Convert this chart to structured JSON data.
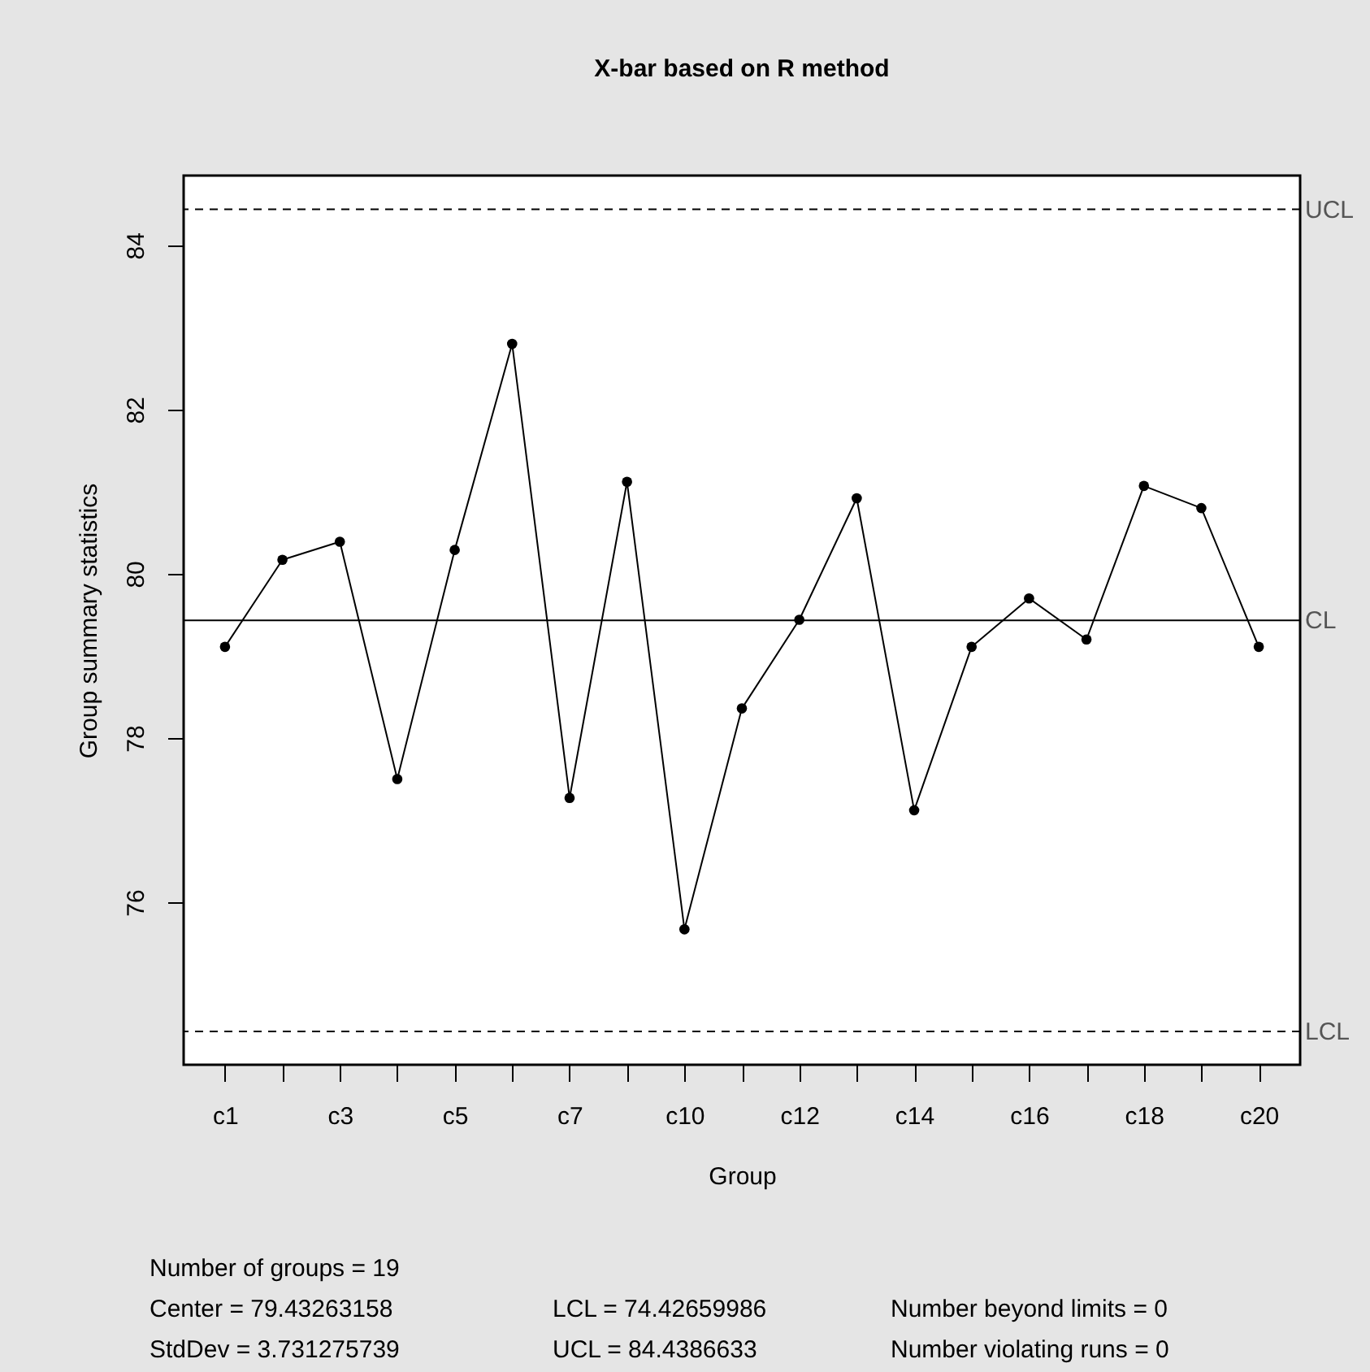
{
  "chart_data": {
    "type": "line",
    "title": "X-bar based on R method",
    "xlabel": "Group",
    "ylabel": "Group summary statistics",
    "categories": [
      "c1",
      null,
      "c3",
      null,
      "c5",
      null,
      "c7",
      null,
      "c10",
      null,
      "c12",
      null,
      "c14",
      null,
      "c16",
      null,
      "c18",
      null,
      "c20"
    ],
    "series": [
      {
        "color": "#000000",
        "values": [
          79.11,
          80.17,
          80.39,
          77.5,
          80.29,
          82.8,
          77.27,
          81.12,
          75.67,
          78.36,
          79.44,
          80.92,
          77.12,
          79.11,
          79.7,
          79.2,
          81.07,
          80.8,
          79.11
        ]
      }
    ],
    "ylim": [
      74.02,
      84.85
    ],
    "yticks": [
      76,
      78,
      80,
      82,
      84
    ],
    "marker": "circle",
    "grid": false,
    "ref_lines": [
      {
        "axis": "y",
        "value": 84.4386633,
        "label": "UCL",
        "line_style": "dashed",
        "color": "#000000"
      },
      {
        "axis": "y",
        "value": 79.43263158,
        "label": "CL",
        "line_style": "solid",
        "color": "#000000"
      },
      {
        "axis": "y",
        "value": 74.42659986,
        "label": "LCL",
        "line_style": "dashed",
        "color": "#000000"
      }
    ],
    "annotations": [
      "Number of groups = 19",
      "Center = 79.43263158",
      "LCL = 74.42659986",
      "Number beyond limits = 0",
      "StdDev = 3.731275739",
      "UCL = 84.4386633",
      "Number violating runs = 0"
    ]
  }
}
